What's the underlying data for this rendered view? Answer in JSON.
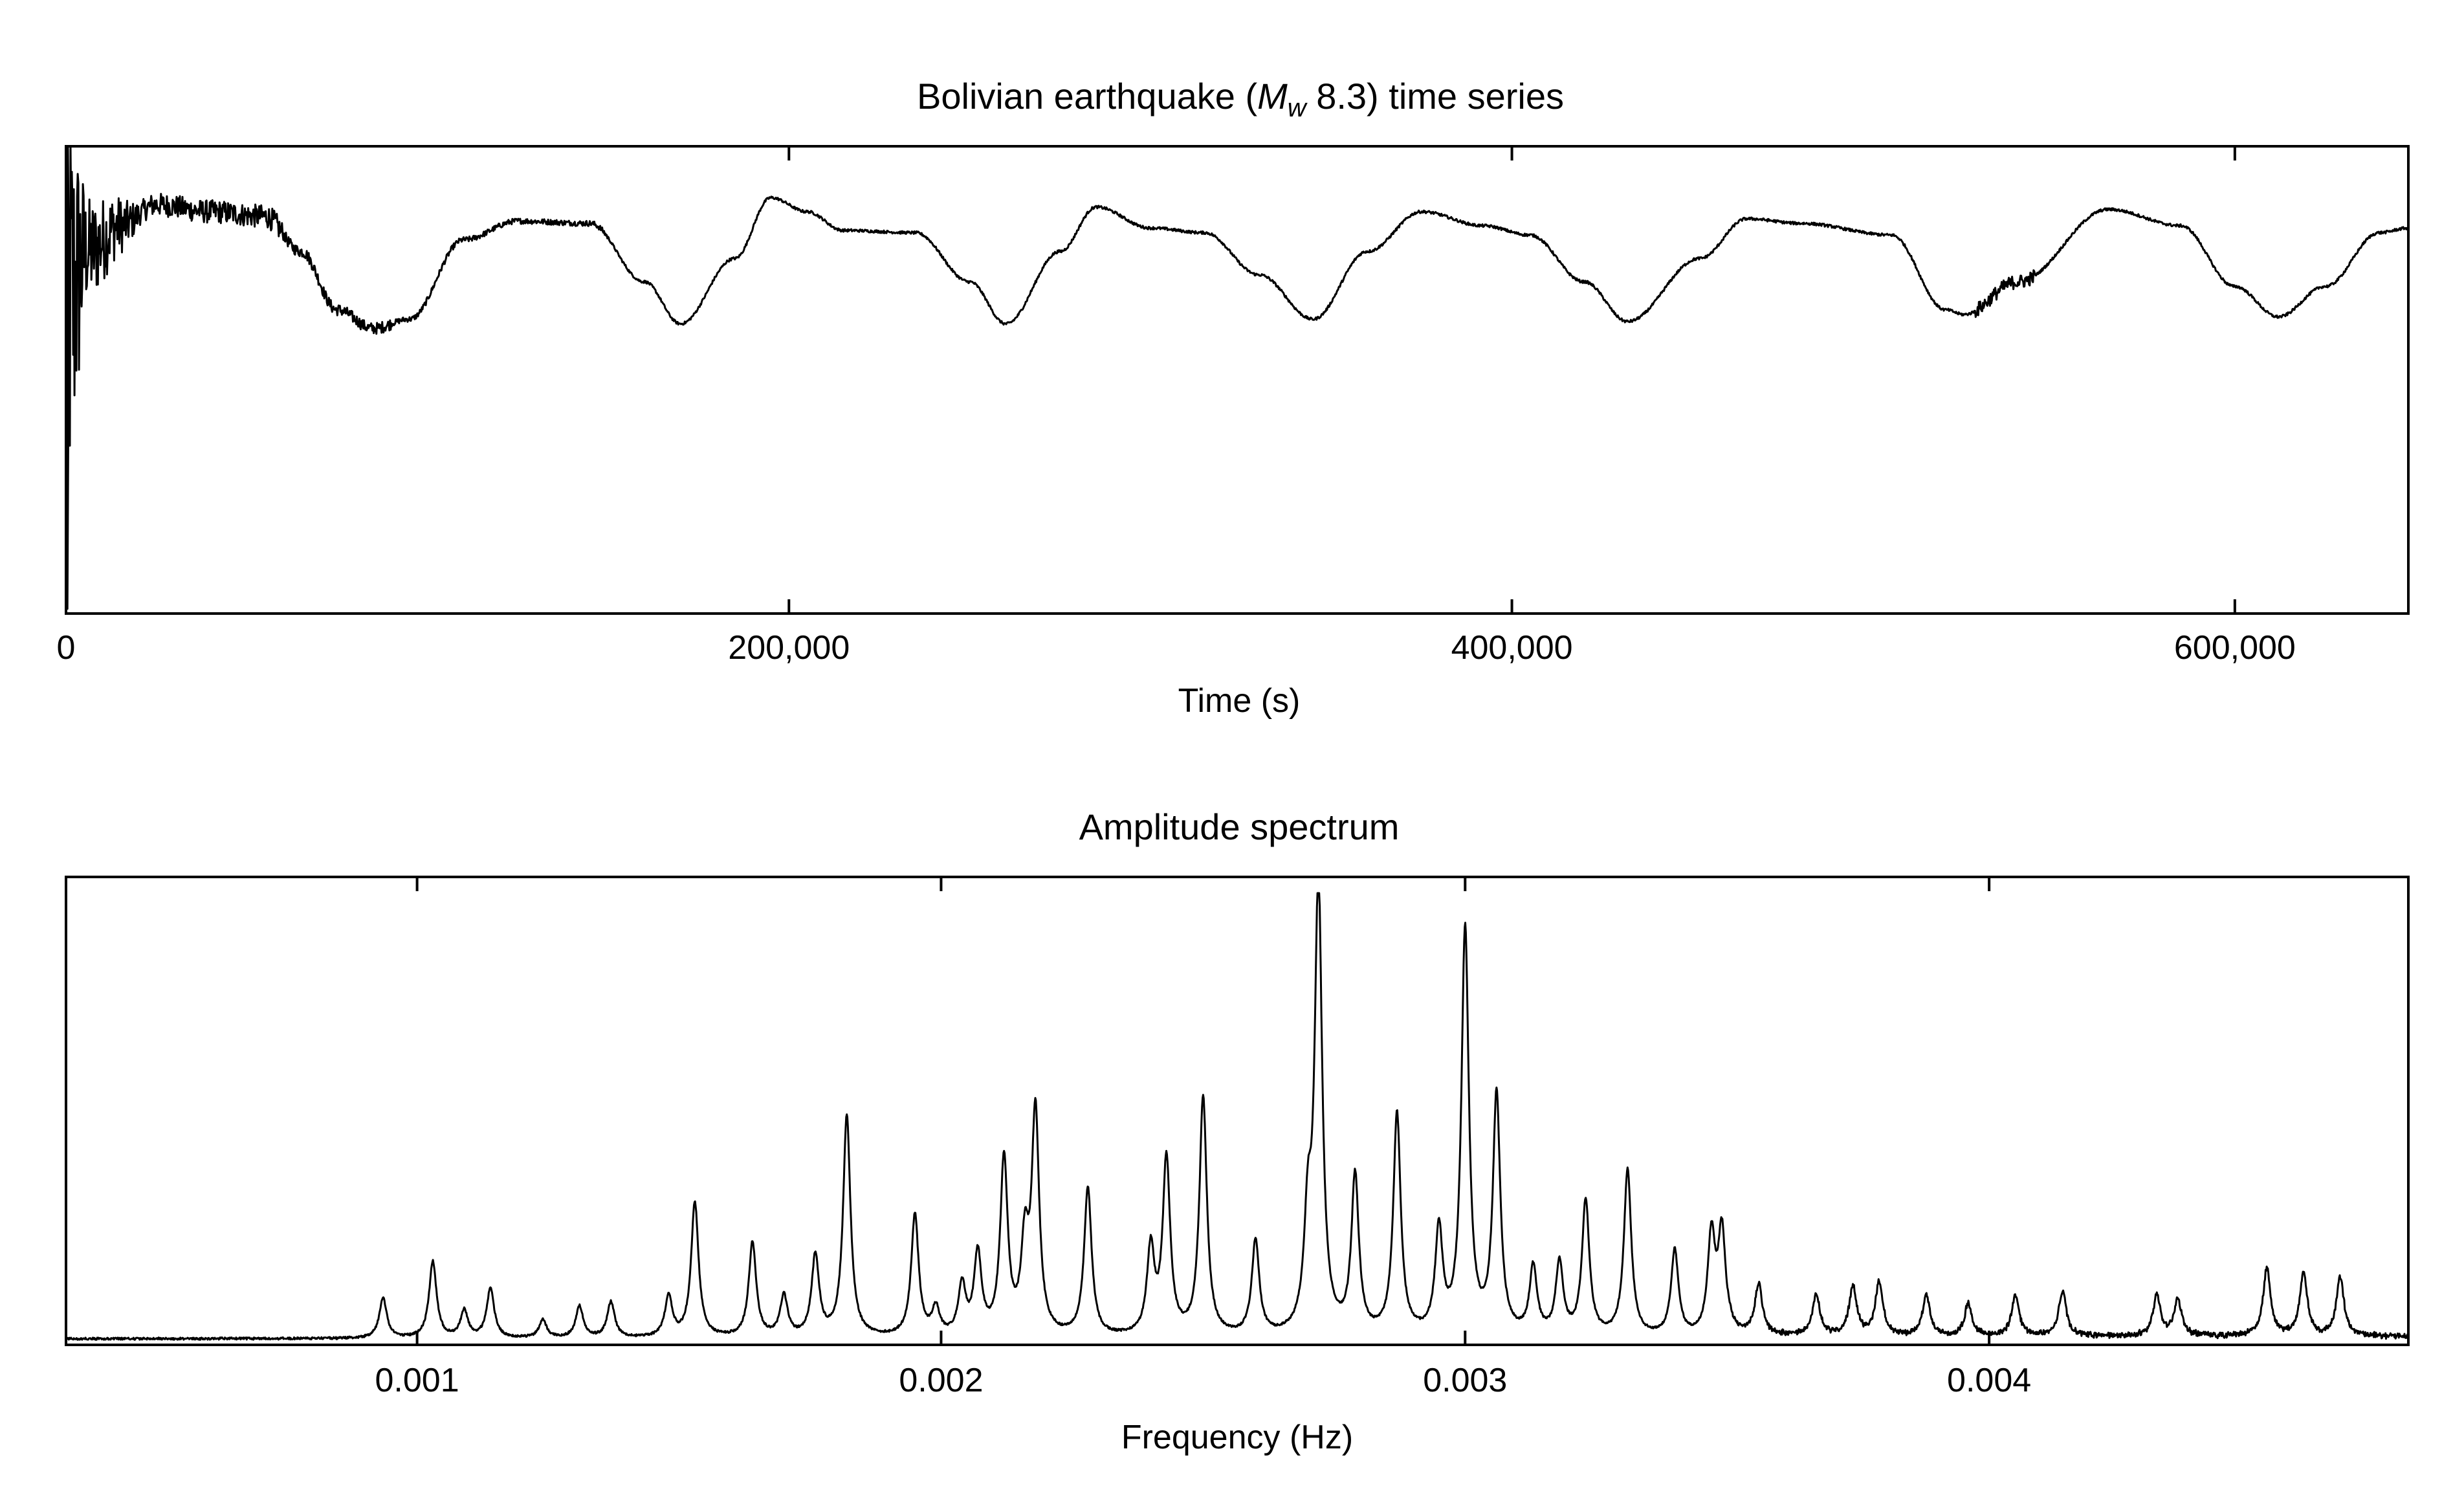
{
  "chart_data": [
    {
      "type": "line",
      "title": "Bolivian earthquake (M_w 8.3) time series",
      "title_parts": {
        "pre": "Bolivian earthquake (",
        "m": "M",
        "sub": "w",
        "post": " 8.3) time series"
      },
      "xlabel": "Time (s)",
      "ylabel": "",
      "xlim": [
        0,
        648000
      ],
      "ylim": [
        -1.0,
        1.0
      ],
      "xticks": [
        0,
        200000,
        400000,
        600000
      ],
      "xtick_labels": [
        "0",
        "200,000",
        "400,000",
        "600,000"
      ],
      "grid": false,
      "series": [
        {
          "color": "#000000",
          "points": [
            [
              0,
              0.3
            ],
            [
              6000,
              0.55
            ],
            [
              15000,
              0.66
            ],
            [
              25000,
              0.75
            ],
            [
              40000,
              0.72
            ],
            [
              55000,
              0.7
            ],
            [
              65000,
              0.55
            ],
            [
              75000,
              0.3
            ],
            [
              85000,
              0.22
            ],
            [
              95000,
              0.26
            ],
            [
              110000,
              0.6
            ],
            [
              125000,
              0.68
            ],
            [
              145000,
              0.67
            ],
            [
              160000,
              0.42
            ],
            [
              170000,
              0.24
            ],
            [
              185000,
              0.52
            ],
            [
              195000,
              0.78
            ],
            [
              205000,
              0.72
            ],
            [
              215000,
              0.64
            ],
            [
              235000,
              0.63
            ],
            [
              250000,
              0.42
            ],
            [
              260000,
              0.24
            ],
            [
              275000,
              0.55
            ],
            [
              285000,
              0.74
            ],
            [
              300000,
              0.65
            ],
            [
              315000,
              0.63
            ],
            [
              330000,
              0.45
            ],
            [
              345000,
              0.26
            ],
            [
              360000,
              0.55
            ],
            [
              375000,
              0.72
            ],
            [
              392000,
              0.66
            ],
            [
              405000,
              0.62
            ],
            [
              420000,
              0.42
            ],
            [
              432000,
              0.25
            ],
            [
              452000,
              0.52
            ],
            [
              465000,
              0.69
            ],
            [
              480000,
              0.67
            ],
            [
              505000,
              0.62
            ],
            [
              520000,
              0.3
            ],
            [
              525000,
              0.28
            ],
            [
              540000,
              0.42
            ],
            [
              565000,
              0.73
            ],
            [
              585000,
              0.66
            ],
            [
              600000,
              0.4
            ],
            [
              612000,
              0.27
            ],
            [
              625000,
              0.4
            ],
            [
              640000,
              0.63
            ],
            [
              648000,
              0.65
            ]
          ]
        }
      ]
    },
    {
      "type": "line",
      "title": "Amplitude spectrum",
      "xlabel": "Frequency (Hz)",
      "ylabel": "",
      "xlim": [
        0.00033,
        0.0048
      ],
      "ylim": [
        0,
        1.0
      ],
      "xticks": [
        0.001,
        0.002,
        0.003,
        0.004
      ],
      "xtick_labels": [
        "0.001",
        "0.002",
        "0.003",
        "0.004"
      ],
      "grid": false,
      "series": [
        {
          "color": "#000000",
          "peaks": [
            [
              0.000935,
              0.09
            ],
            [
              0.00103,
              0.17
            ],
            [
              0.00109,
              0.06
            ],
            [
              0.00114,
              0.11
            ],
            [
              0.00124,
              0.04
            ],
            [
              0.00131,
              0.07
            ],
            [
              0.00137,
              0.08
            ],
            [
              0.00148,
              0.09
            ],
            [
              0.00153,
              0.3
            ],
            [
              0.00164,
              0.21
            ],
            [
              0.0017,
              0.09
            ],
            [
              0.00176,
              0.18
            ],
            [
              0.00182,
              0.49
            ],
            [
              0.00195,
              0.27
            ],
            [
              0.00199,
              0.06
            ],
            [
              0.00204,
              0.11
            ],
            [
              0.00207,
              0.18
            ],
            [
              0.00212,
              0.39
            ],
            [
              0.00216,
              0.19
            ],
            [
              0.00218,
              0.49
            ],
            [
              0.00228,
              0.33
            ],
            [
              0.0024,
              0.19
            ],
            [
              0.00243,
              0.39
            ],
            [
              0.0025,
              0.53
            ],
            [
              0.0026,
              0.21
            ],
            [
              0.0027,
              0.23
            ],
            [
              0.00272,
              1.0
            ],
            [
              0.00279,
              0.35
            ],
            [
              0.00287,
              0.49
            ],
            [
              0.00295,
              0.23
            ],
            [
              0.003,
              0.9
            ],
            [
              0.00306,
              0.53
            ],
            [
              0.00313,
              0.15
            ],
            [
              0.00318,
              0.16
            ],
            [
              0.00323,
              0.3
            ],
            [
              0.00331,
              0.37
            ],
            [
              0.0034,
              0.19
            ],
            [
              0.00347,
              0.22
            ],
            [
              0.00349,
              0.23
            ],
            [
              0.00356,
              0.11
            ],
            [
              0.00367,
              0.09
            ],
            [
              0.00374,
              0.11
            ],
            [
              0.00379,
              0.12
            ],
            [
              0.00388,
              0.09
            ],
            [
              0.00396,
              0.07
            ],
            [
              0.00405,
              0.09
            ],
            [
              0.00414,
              0.1
            ],
            [
              0.00432,
              0.09
            ],
            [
              0.00436,
              0.08
            ],
            [
              0.00453,
              0.15
            ],
            [
              0.0046,
              0.14
            ],
            [
              0.00467,
              0.13
            ]
          ]
        }
      ]
    }
  ]
}
